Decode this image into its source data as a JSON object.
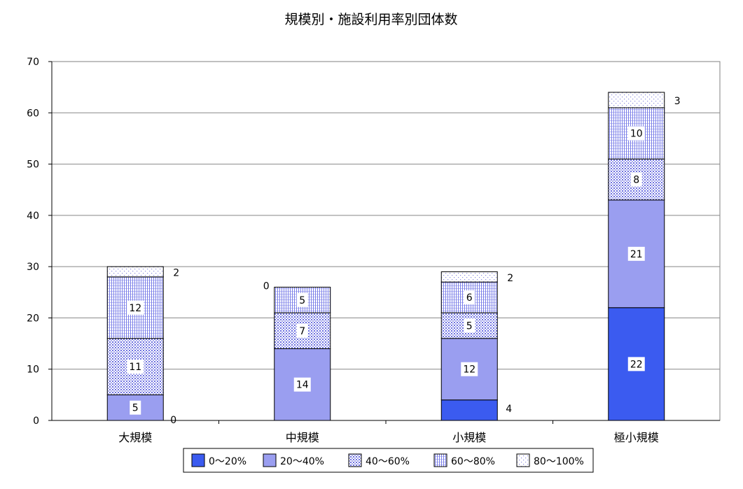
{
  "chart_data": {
    "type": "bar",
    "stacked": true,
    "title": "規模別・施設利用率別団体数",
    "categories": [
      "大規模",
      "中規模",
      "小規模",
      "極小規模"
    ],
    "series": [
      {
        "name": "0～20%",
        "values": [
          0,
          0,
          4,
          22
        ],
        "labels": [
          "",
          "",
          "4",
          "22"
        ]
      },
      {
        "name": "20～40%",
        "values": [
          5,
          14,
          12,
          21
        ],
        "labels": [
          "5",
          "14",
          "12",
          "21"
        ]
      },
      {
        "name": "40～60%",
        "values": [
          11,
          7,
          5,
          8
        ],
        "labels": [
          "11",
          "7",
          "5",
          "8"
        ]
      },
      {
        "name": "60～80%",
        "values": [
          12,
          5,
          6,
          10
        ],
        "labels": [
          "12",
          "5",
          "6",
          "10"
        ]
      },
      {
        "name": "80～100%",
        "values": [
          2,
          0,
          2,
          3
        ],
        "labels": [
          "2",
          "0",
          "2",
          "3"
        ]
      }
    ],
    "extra_labels": [
      {
        "category": 0,
        "text": "0"
      }
    ],
    "ylim": [
      0,
      70
    ],
    "yticks": [
      "0",
      "10",
      "20",
      "30",
      "40",
      "50",
      "60",
      "70"
    ],
    "grid": true,
    "legend_position": "bottom",
    "colors": {
      "s0": "#3b5bf0",
      "s1": "#9a9ef0",
      "s2": "#6c70e0",
      "s3": "#7a7ee8",
      "s4": "#8a8ae0",
      "grid": "#888888",
      "axis": "#000000"
    }
  }
}
